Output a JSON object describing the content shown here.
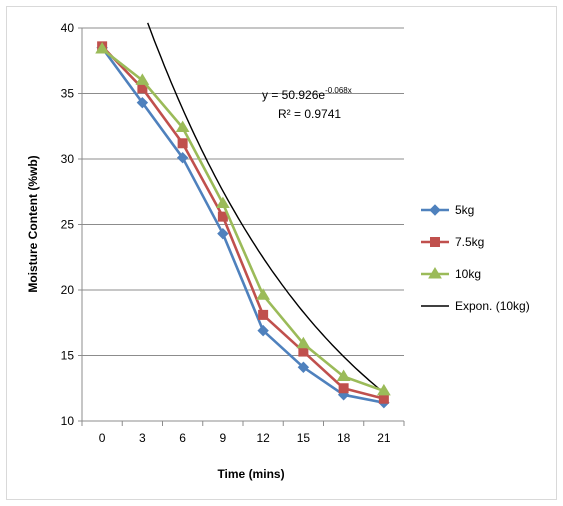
{
  "chart_data": {
    "type": "line",
    "xlabel": "Time (mins)",
    "ylabel": "Moisture Content (%wb)",
    "x": [
      0,
      3,
      6,
      9,
      12,
      15,
      18,
      21
    ],
    "ylim": [
      10,
      40
    ],
    "yticks": [
      10,
      15,
      20,
      25,
      30,
      35,
      40
    ],
    "grid": "horizontal",
    "legend_position": "right",
    "series": [
      {
        "name": "5kg",
        "color": "#4f81bd",
        "marker": "diamond",
        "values": [
          38.5,
          34.3,
          30.1,
          24.3,
          16.9,
          14.1,
          12.0,
          11.4
        ]
      },
      {
        "name": "7.5kg",
        "color": "#c0504d",
        "marker": "square",
        "values": [
          38.6,
          35.4,
          31.2,
          25.6,
          18.1,
          15.3,
          12.5,
          11.7
        ]
      },
      {
        "name": "10kg",
        "color": "#9bbb59",
        "marker": "triangle",
        "values": [
          38.4,
          36.0,
          32.4,
          26.6,
          19.6,
          15.9,
          13.4,
          12.3
        ]
      }
    ],
    "trendline": {
      "name": "Expon. (10kg)",
      "color": "#000000",
      "a": 50.926,
      "b": -0.0682
    },
    "annotations": {
      "equation": "y = 50.926e",
      "equation_exponent": "-0.068x",
      "r2_label": "R² = 0.9741"
    }
  }
}
